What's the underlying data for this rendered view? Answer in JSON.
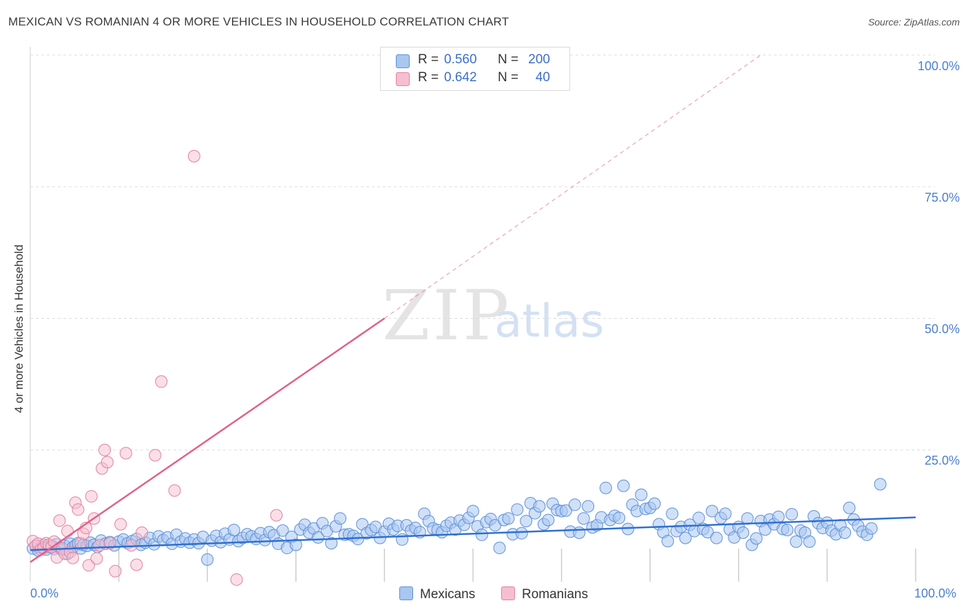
{
  "title": "MEXICAN VS ROMANIAN 4 OR MORE VEHICLES IN HOUSEHOLD CORRELATION CHART",
  "source": "Source: ZipAtlas.com",
  "watermark": {
    "zip": "ZIP",
    "atlas": "atlas"
  },
  "colors": {
    "mexicans_fill": "#a9c7f0",
    "mexicans_stroke": "#5b8fd8",
    "mexicans_line": "#2f6fd0",
    "romanians_fill": "#f6bfd0",
    "romanians_stroke": "#e27fa0",
    "romanians_line": "#e0608c",
    "grid": "#dddddd",
    "tick": "#4a7fcf"
  },
  "legend": {
    "rows": [
      {
        "r_label": "R =",
        "r_value": "0.560",
        "n_label": "N =",
        "n_value": "200"
      },
      {
        "r_label": "R =",
        "r_value": "0.642",
        "n_label": "N =",
        "n_value": "40"
      }
    ],
    "bottom": [
      "Mexicans",
      "Romanians"
    ]
  },
  "chart_data": {
    "type": "scatter",
    "title": "MEXICAN VS ROMANIAN 4 OR MORE VEHICLES IN HOUSEHOLD CORRELATION CHART",
    "xlabel": "",
    "ylabel": "4 or more Vehicles in Household",
    "xlim": [
      0,
      100
    ],
    "ylim": [
      0,
      100
    ],
    "x_tick_labels": [
      "0.0%",
      "100.0%"
    ],
    "y_ticks": [
      25,
      50,
      75,
      100
    ],
    "y_tick_labels": [
      "25.0%",
      "50.0%",
      "75.0%",
      "100.0%"
    ],
    "legend_position": "top-center",
    "series": [
      {
        "name": "Mexicans",
        "r": 0.56,
        "n": 200,
        "trend": {
          "x": [
            0,
            100
          ],
          "y": [
            6.0,
            12.2
          ]
        },
        "points": [
          [
            0.3,
            6.3
          ],
          [
            0.6,
            6.8
          ],
          [
            0.9,
            5.9
          ],
          [
            1.2,
            6.5
          ],
          [
            1.5,
            7.0
          ],
          [
            1.8,
            6.1
          ],
          [
            2.1,
            6.6
          ],
          [
            2.4,
            6.9
          ],
          [
            2.7,
            6.2
          ],
          [
            3.0,
            7.1
          ],
          [
            3.3,
            6.4
          ],
          [
            3.6,
            6.0
          ],
          [
            3.9,
            6.8
          ],
          [
            4.2,
            5.3
          ],
          [
            4.5,
            7.2
          ],
          [
            4.8,
            6.5
          ],
          [
            5.1,
            6.9
          ],
          [
            5.4,
            7.3
          ],
          [
            5.7,
            6.3
          ],
          [
            6.0,
            7.0
          ],
          [
            6.4,
            6.8
          ],
          [
            6.8,
            7.4
          ],
          [
            7.2,
            7.0
          ],
          [
            7.6,
            6.6
          ],
          [
            8.0,
            7.8
          ],
          [
            8.5,
            7.2
          ],
          [
            9.0,
            7.5
          ],
          [
            9.5,
            6.9
          ],
          [
            10.0,
            7.6
          ],
          [
            10.5,
            8.0
          ],
          [
            11.0,
            7.3
          ],
          [
            11.5,
            7.7
          ],
          [
            12.0,
            8.1
          ],
          [
            12.5,
            7.0
          ],
          [
            13.0,
            7.4
          ],
          [
            13.5,
            8.3
          ],
          [
            14.0,
            7.1
          ],
          [
            14.5,
            8.6
          ],
          [
            15.0,
            7.9
          ],
          [
            15.5,
            8.4
          ],
          [
            16.0,
            7.2
          ],
          [
            16.5,
            8.9
          ],
          [
            17.0,
            7.6
          ],
          [
            17.5,
            8.2
          ],
          [
            18.0,
            7.4
          ],
          [
            18.5,
            8.0
          ],
          [
            19.0,
            7.3
          ],
          [
            19.5,
            8.5
          ],
          [
            20.0,
            4.2
          ],
          [
            20.5,
            7.8
          ],
          [
            21.0,
            8.7
          ],
          [
            21.5,
            7.5
          ],
          [
            22.0,
            9.1
          ],
          [
            22.5,
            8.0
          ],
          [
            23.0,
            9.8
          ],
          [
            23.5,
            7.7
          ],
          [
            24.0,
            8.3
          ],
          [
            24.5,
            9.0
          ],
          [
            25.0,
            8.6
          ],
          [
            25.5,
            8.1
          ],
          [
            26.0,
            9.2
          ],
          [
            26.5,
            7.9
          ],
          [
            27.0,
            9.4
          ],
          [
            27.5,
            8.8
          ],
          [
            28.0,
            7.2
          ],
          [
            28.5,
            9.7
          ],
          [
            29.0,
            6.4
          ],
          [
            29.5,
            8.5
          ],
          [
            30.0,
            7.0
          ],
          [
            30.5,
            9.9
          ],
          [
            31.0,
            10.8
          ],
          [
            31.5,
            9.3
          ],
          [
            32.0,
            10.1
          ],
          [
            32.5,
            8.4
          ],
          [
            33.0,
            11.1
          ],
          [
            33.5,
            9.6
          ],
          [
            34.0,
            7.3
          ],
          [
            34.5,
            10.5
          ],
          [
            35.0,
            12.0
          ],
          [
            35.5,
            8.9
          ],
          [
            36.0,
            9.0
          ],
          [
            36.5,
            8.7
          ],
          [
            37.0,
            8.1
          ],
          [
            37.5,
            10.9
          ],
          [
            38.0,
            9.2
          ],
          [
            38.5,
            9.8
          ],
          [
            39.0,
            10.4
          ],
          [
            39.5,
            8.3
          ],
          [
            40.0,
            9.5
          ],
          [
            40.5,
            11.0
          ],
          [
            41.0,
            9.9
          ],
          [
            41.5,
            10.6
          ],
          [
            42.0,
            8.0
          ],
          [
            42.5,
            10.7
          ],
          [
            43.0,
            9.7
          ],
          [
            43.5,
            10.2
          ],
          [
            44.0,
            9.4
          ],
          [
            44.5,
            12.9
          ],
          [
            45.0,
            11.5
          ],
          [
            45.5,
            10.1
          ],
          [
            46.0,
            9.8
          ],
          [
            46.5,
            9.4
          ],
          [
            47.0,
            10.6
          ],
          [
            47.5,
            11.2
          ],
          [
            48.0,
            9.9
          ],
          [
            48.5,
            11.6
          ],
          [
            49.0,
            10.8
          ],
          [
            49.5,
            12.1
          ],
          [
            50.0,
            13.4
          ],
          [
            50.5,
            10.5
          ],
          [
            51.0,
            8.9
          ],
          [
            51.5,
            11.3
          ],
          [
            52.0,
            11.9
          ],
          [
            52.5,
            10.7
          ],
          [
            53.0,
            6.4
          ],
          [
            53.5,
            11.7
          ],
          [
            54.0,
            12.0
          ],
          [
            54.5,
            9.0
          ],
          [
            55.0,
            13.7
          ],
          [
            55.5,
            9.2
          ],
          [
            56.0,
            11.5
          ],
          [
            56.5,
            14.9
          ],
          [
            57.0,
            13.0
          ],
          [
            57.5,
            14.3
          ],
          [
            58.0,
            10.9
          ],
          [
            58.5,
            11.7
          ],
          [
            59.0,
            14.8
          ],
          [
            59.5,
            13.6
          ],
          [
            60.0,
            13.4
          ],
          [
            60.5,
            13.5
          ],
          [
            61.0,
            9.5
          ],
          [
            61.5,
            14.6
          ],
          [
            62.0,
            9.3
          ],
          [
            62.5,
            12.0
          ],
          [
            63.0,
            14.3
          ],
          [
            63.5,
            10.3
          ],
          [
            64.0,
            10.7
          ],
          [
            64.5,
            12.2
          ],
          [
            65.0,
            17.8
          ],
          [
            65.5,
            11.7
          ],
          [
            66.0,
            12.5
          ],
          [
            66.5,
            12.1
          ],
          [
            67.0,
            18.2
          ],
          [
            67.5,
            10.0
          ],
          [
            68.0,
            14.6
          ],
          [
            68.5,
            13.4
          ],
          [
            69.0,
            16.5
          ],
          [
            69.5,
            13.8
          ],
          [
            70.0,
            14.0
          ],
          [
            70.5,
            14.8
          ],
          [
            71.0,
            10.9
          ],
          [
            71.5,
            9.4
          ],
          [
            72.0,
            7.7
          ],
          [
            72.5,
            12.9
          ],
          [
            73.0,
            9.6
          ],
          [
            73.5,
            10.4
          ],
          [
            74.0,
            8.3
          ],
          [
            74.5,
            10.8
          ],
          [
            75.0,
            9.6
          ],
          [
            75.5,
            12.1
          ],
          [
            76.0,
            10.0
          ],
          [
            76.5,
            9.4
          ],
          [
            77.0,
            13.4
          ],
          [
            77.5,
            8.3
          ],
          [
            78.0,
            12.1
          ],
          [
            78.5,
            12.9
          ],
          [
            79.0,
            9.9
          ],
          [
            79.5,
            8.4
          ],
          [
            80.0,
            10.4
          ],
          [
            80.5,
            9.3
          ],
          [
            81.0,
            12.0
          ],
          [
            81.5,
            7.0
          ],
          [
            82.0,
            8.2
          ],
          [
            82.5,
            11.5
          ],
          [
            83.0,
            9.9
          ],
          [
            83.5,
            11.8
          ],
          [
            84.0,
            10.9
          ],
          [
            84.5,
            12.3
          ],
          [
            85.0,
            10.0
          ],
          [
            85.5,
            9.8
          ],
          [
            86.0,
            12.8
          ],
          [
            86.5,
            7.6
          ],
          [
            87.0,
            9.7
          ],
          [
            87.5,
            9.3
          ],
          [
            88.0,
            7.6
          ],
          [
            88.5,
            12.4
          ],
          [
            89.0,
            11.1
          ],
          [
            89.5,
            10.2
          ],
          [
            90.0,
            11.2
          ],
          [
            90.5,
            9.7
          ],
          [
            91.0,
            9.0
          ],
          [
            91.5,
            10.7
          ],
          [
            92.0,
            9.3
          ],
          [
            92.5,
            14.0
          ],
          [
            93.0,
            11.8
          ],
          [
            93.5,
            10.6
          ],
          [
            94.0,
            9.5
          ],
          [
            94.5,
            8.9
          ],
          [
            95.0,
            10.1
          ],
          [
            96.0,
            18.5
          ]
        ]
      },
      {
        "name": "Romanians",
        "r": 0.642,
        "n": 40,
        "trend": {
          "x": [
            0,
            40
          ],
          "y": [
            3.7,
            50.0
          ]
        },
        "trend_extension": {
          "x": [
            40,
            82.5
          ],
          "y": [
            50.0,
            100.0
          ]
        },
        "points": [
          [
            0.3,
            7.7
          ],
          [
            0.6,
            6.8
          ],
          [
            0.9,
            7.2
          ],
          [
            1.2,
            6.1
          ],
          [
            1.5,
            6.4
          ],
          [
            1.8,
            7.3
          ],
          [
            2.1,
            7.0
          ],
          [
            2.4,
            6.6
          ],
          [
            2.7,
            7.6
          ],
          [
            3.0,
            4.6
          ],
          [
            3.3,
            11.6
          ],
          [
            3.6,
            6.3
          ],
          [
            3.9,
            5.3
          ],
          [
            4.2,
            9.6
          ],
          [
            4.5,
            5.6
          ],
          [
            4.8,
            4.5
          ],
          [
            5.1,
            15.0
          ],
          [
            5.4,
            13.7
          ],
          [
            5.7,
            7.3
          ],
          [
            6.0,
            9.1
          ],
          [
            6.3,
            10.2
          ],
          [
            6.6,
            3.1
          ],
          [
            6.9,
            16.2
          ],
          [
            7.2,
            12.0
          ],
          [
            7.5,
            4.4
          ],
          [
            7.8,
            6.9
          ],
          [
            8.1,
            21.5
          ],
          [
            8.4,
            25.0
          ],
          [
            8.7,
            22.7
          ],
          [
            9.0,
            7.3
          ],
          [
            9.6,
            2.0
          ],
          [
            10.2,
            10.9
          ],
          [
            10.8,
            24.4
          ],
          [
            11.4,
            6.9
          ],
          [
            12.0,
            3.2
          ],
          [
            12.6,
            9.3
          ],
          [
            14.1,
            24.0
          ],
          [
            14.8,
            38.0
          ],
          [
            16.3,
            17.3
          ],
          [
            18.5,
            80.8
          ]
        ]
      }
    ]
  },
  "extra_romanian_points": [
    [
      23.3,
      0.4
    ],
    [
      27.8,
      12.6
    ]
  ]
}
